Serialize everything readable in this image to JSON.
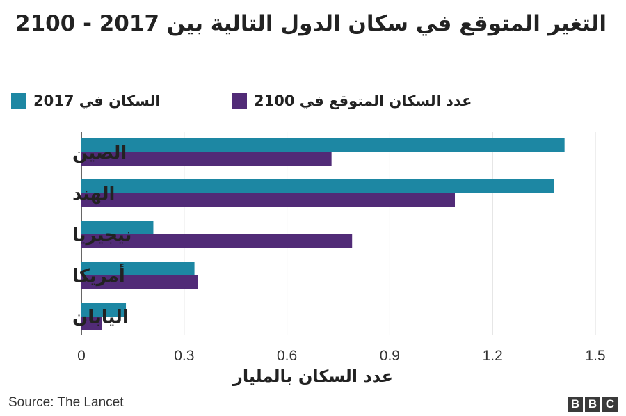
{
  "title": "التغير المتوقع في سكان الدول التالية بين 2017 - 2100",
  "legend": [
    {
      "label": "السكان في 2017",
      "color": "#1d87a3"
    },
    {
      "label": "عدد السكان المتوقع في 2100",
      "color": "#512b77"
    }
  ],
  "chart_data": {
    "type": "bar",
    "orientation": "horizontal",
    "categories": [
      "الصين",
      "الهند",
      "نيجيريا",
      "أمريكا",
      "اليابان"
    ],
    "series": [
      {
        "name": "السكان في 2017",
        "color": "#1d87a3",
        "values": [
          1.41,
          1.38,
          0.21,
          0.33,
          0.13
        ]
      },
      {
        "name": "عدد السكان المتوقع في 2100",
        "color": "#512b77",
        "values": [
          0.73,
          1.09,
          0.79,
          0.34,
          0.06
        ]
      }
    ],
    "xlim": [
      0,
      1.5
    ],
    "xticks": [
      "0",
      "0.3",
      "0.6",
      "0.9",
      "1.2",
      "1.5"
    ],
    "xtick_values": [
      0,
      0.3,
      0.6,
      0.9,
      1.2,
      1.5
    ],
    "xlabel": "عدد السكان بالمليار",
    "grid": "vertical",
    "legend_position": "top"
  },
  "footer": {
    "source": "Source: The Lancet",
    "logo": [
      "B",
      "B",
      "C"
    ]
  }
}
